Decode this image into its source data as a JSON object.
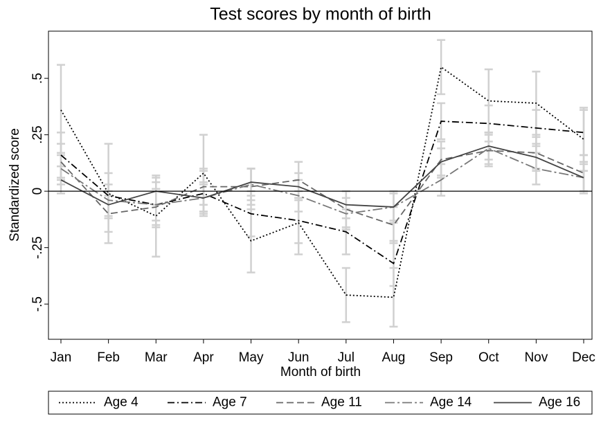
{
  "chart_data": {
    "type": "line",
    "title": "Test scores by month of birth",
    "x_label": "Month of birth",
    "y_label": "Standardized score",
    "categories": [
      "Jan",
      "Feb",
      "Mar",
      "Apr",
      "May",
      "Jun",
      "Jul",
      "Aug",
      "Sep",
      "Oct",
      "Nov",
      "Dec"
    ],
    "ylim": [
      -0.656,
      0.709
    ],
    "yticks": [
      {
        "value": -0.5,
        "label": "-.5"
      },
      {
        "value": -0.25,
        "label": "-.25"
      },
      0,
      {
        "value": 0.25,
        "label": ".25"
      },
      {
        "value": 0.5,
        "label": ".5"
      }
    ],
    "legend": "bottom",
    "error_color": "#d0d0d0",
    "series": [
      {
        "name": "Age 4",
        "color": "#000000",
        "dash": "2,3",
        "values": [
          0.36,
          -0.01,
          -0.11,
          0.08,
          -0.22,
          -0.14,
          -0.46,
          -0.47,
          0.55,
          0.4,
          0.39,
          0.23
        ],
        "errors": [
          0.2,
          0.22,
          0.18,
          0.17,
          0.14,
          0.14,
          0.12,
          0.13,
          0.12,
          0.14,
          0.14,
          0.14
        ]
      },
      {
        "name": "Age 7",
        "color": "#000000",
        "dash": "10,4,2,4",
        "values": [
          0.16,
          -0.02,
          -0.06,
          -0.01,
          -0.1,
          -0.13,
          -0.18,
          -0.32,
          0.31,
          0.3,
          0.28,
          0.26
        ],
        "errors": [
          0.1,
          0.1,
          0.1,
          0.1,
          0.1,
          0.1,
          0.1,
          0.1,
          0.08,
          0.08,
          0.08,
          0.1
        ]
      },
      {
        "name": "Age 11",
        "color": "#666666",
        "dash": "10,5",
        "values": [
          0.13,
          -0.1,
          -0.07,
          0.02,
          0.02,
          0.05,
          -0.08,
          -0.15,
          0.14,
          0.18,
          0.17,
          0.08
        ],
        "errors": [
          0.08,
          0.08,
          0.08,
          0.08,
          0.08,
          0.08,
          0.08,
          0.08,
          0.08,
          0.07,
          0.07,
          0.08
        ]
      },
      {
        "name": "Age 14",
        "color": "#777777",
        "dash": "14,4,3,4",
        "values": [
          0.1,
          -0.04,
          -0.06,
          -0.03,
          0.03,
          -0.02,
          -0.1,
          -0.07,
          0.05,
          0.19,
          0.1,
          0.06
        ],
        "errors": [
          0.07,
          0.07,
          0.07,
          0.07,
          0.07,
          0.07,
          0.07,
          0.07,
          0.07,
          0.07,
          0.07,
          0.07
        ]
      },
      {
        "name": "Age 16",
        "color": "#444444",
        "dash": "",
        "values": [
          0.05,
          -0.06,
          0.0,
          -0.03,
          0.04,
          0.02,
          -0.06,
          -0.07,
          0.13,
          0.2,
          0.15,
          0.06
        ],
        "errors": [
          0.06,
          0.06,
          0.06,
          0.06,
          0.06,
          0.06,
          0.06,
          0.06,
          0.06,
          0.06,
          0.06,
          0.06
        ]
      }
    ]
  }
}
